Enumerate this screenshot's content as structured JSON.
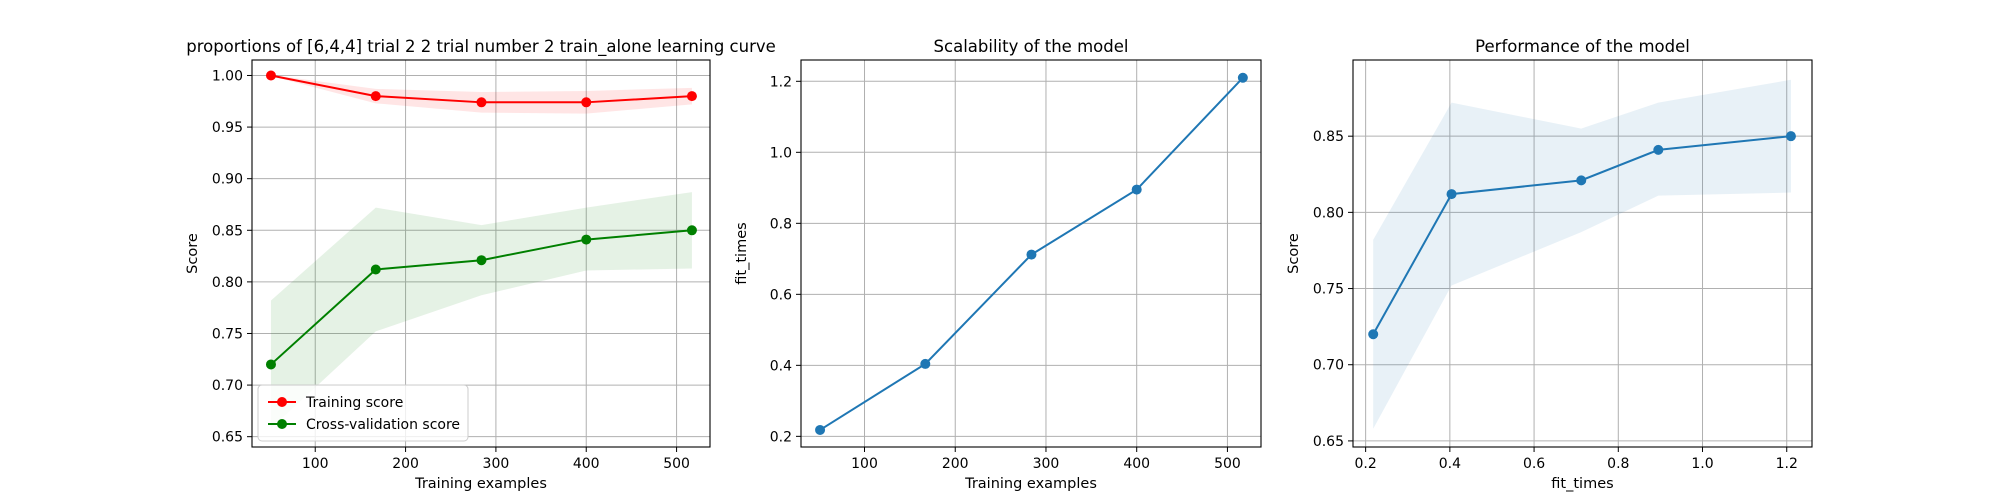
{
  "figure": {
    "background": "#ffffff"
  },
  "chart_data": [
    {
      "type": "line",
      "title": "proportions of [6,4,4] trial 2 2 trial number 2 train_alone learning curve",
      "xlabel": "Training examples",
      "ylabel": "Score",
      "xlim": [
        30,
        537
      ],
      "ylim": [
        0.64,
        1.015
      ],
      "xticks": [
        100,
        200,
        300,
        400,
        500
      ],
      "xtick_labels": [
        "100",
        "200",
        "300",
        "400",
        "500"
      ],
      "yticks": [
        0.65,
        0.7,
        0.75,
        0.8,
        0.85,
        0.9,
        0.95,
        1.0
      ],
      "ytick_labels": [
        "0.65",
        "0.70",
        "0.75",
        "0.80",
        "0.85",
        "0.90",
        "0.95",
        "1.00"
      ],
      "grid": true,
      "legend": {
        "placement": "lower-left"
      },
      "x": [
        51,
        167,
        284,
        400,
        517
      ],
      "series": [
        {
          "name": "Training score",
          "color": "#ff0000",
          "values": [
            1.0,
            0.98,
            0.974,
            0.974,
            0.98
          ],
          "band_lower": [
            0.9995,
            0.973,
            0.964,
            0.963,
            0.972
          ],
          "band_upper": [
            1.0005,
            0.987,
            0.984,
            0.985,
            0.988
          ]
        },
        {
          "name": "Cross-validation score",
          "color": "#008000",
          "values": [
            0.72,
            0.812,
            0.821,
            0.841,
            0.85
          ],
          "band_lower": [
            0.658,
            0.752,
            0.787,
            0.811,
            0.813
          ],
          "band_upper": [
            0.782,
            0.872,
            0.855,
            0.872,
            0.887
          ]
        }
      ]
    },
    {
      "type": "line",
      "title": "Scalability of the model",
      "xlabel": "Training examples",
      "ylabel": "fit_times",
      "xlim": [
        30,
        537
      ],
      "ylim": [
        0.17,
        1.26
      ],
      "xticks": [
        100,
        200,
        300,
        400,
        500
      ],
      "xtick_labels": [
        "100",
        "200",
        "300",
        "400",
        "500"
      ],
      "yticks": [
        0.2,
        0.4,
        0.6,
        0.8,
        1.0,
        1.2
      ],
      "ytick_labels": [
        "0.2",
        "0.4",
        "0.6",
        "0.8",
        "1.0",
        "1.2"
      ],
      "grid": true,
      "x": [
        51,
        167,
        284,
        400,
        517
      ],
      "series": [
        {
          "color": "#1f77b4",
          "values": [
            0.218,
            0.404,
            0.712,
            0.895,
            1.21
          ]
        }
      ]
    },
    {
      "type": "line",
      "title": "Performance of the model",
      "xlabel": "fit_times",
      "ylabel": "Score",
      "xlim": [
        0.17,
        1.26
      ],
      "ylim": [
        0.646,
        0.9
      ],
      "xticks": [
        0.2,
        0.4,
        0.6,
        0.8,
        1.0,
        1.2
      ],
      "xtick_labels": [
        "0.2",
        "0.4",
        "0.6",
        "0.8",
        "1.0",
        "1.2"
      ],
      "yticks": [
        0.65,
        0.7,
        0.75,
        0.8,
        0.85
      ],
      "ytick_labels": [
        "0.65",
        "0.70",
        "0.75",
        "0.80",
        "0.85"
      ],
      "grid": true,
      "x": [
        0.218,
        0.404,
        0.712,
        0.895,
        1.21
      ],
      "series": [
        {
          "color": "#1f77b4",
          "values": [
            0.72,
            0.812,
            0.821,
            0.841,
            0.85
          ],
          "band_lower": [
            0.658,
            0.752,
            0.787,
            0.811,
            0.813
          ],
          "band_upper": [
            0.782,
            0.872,
            0.855,
            0.872,
            0.887
          ]
        }
      ]
    }
  ]
}
